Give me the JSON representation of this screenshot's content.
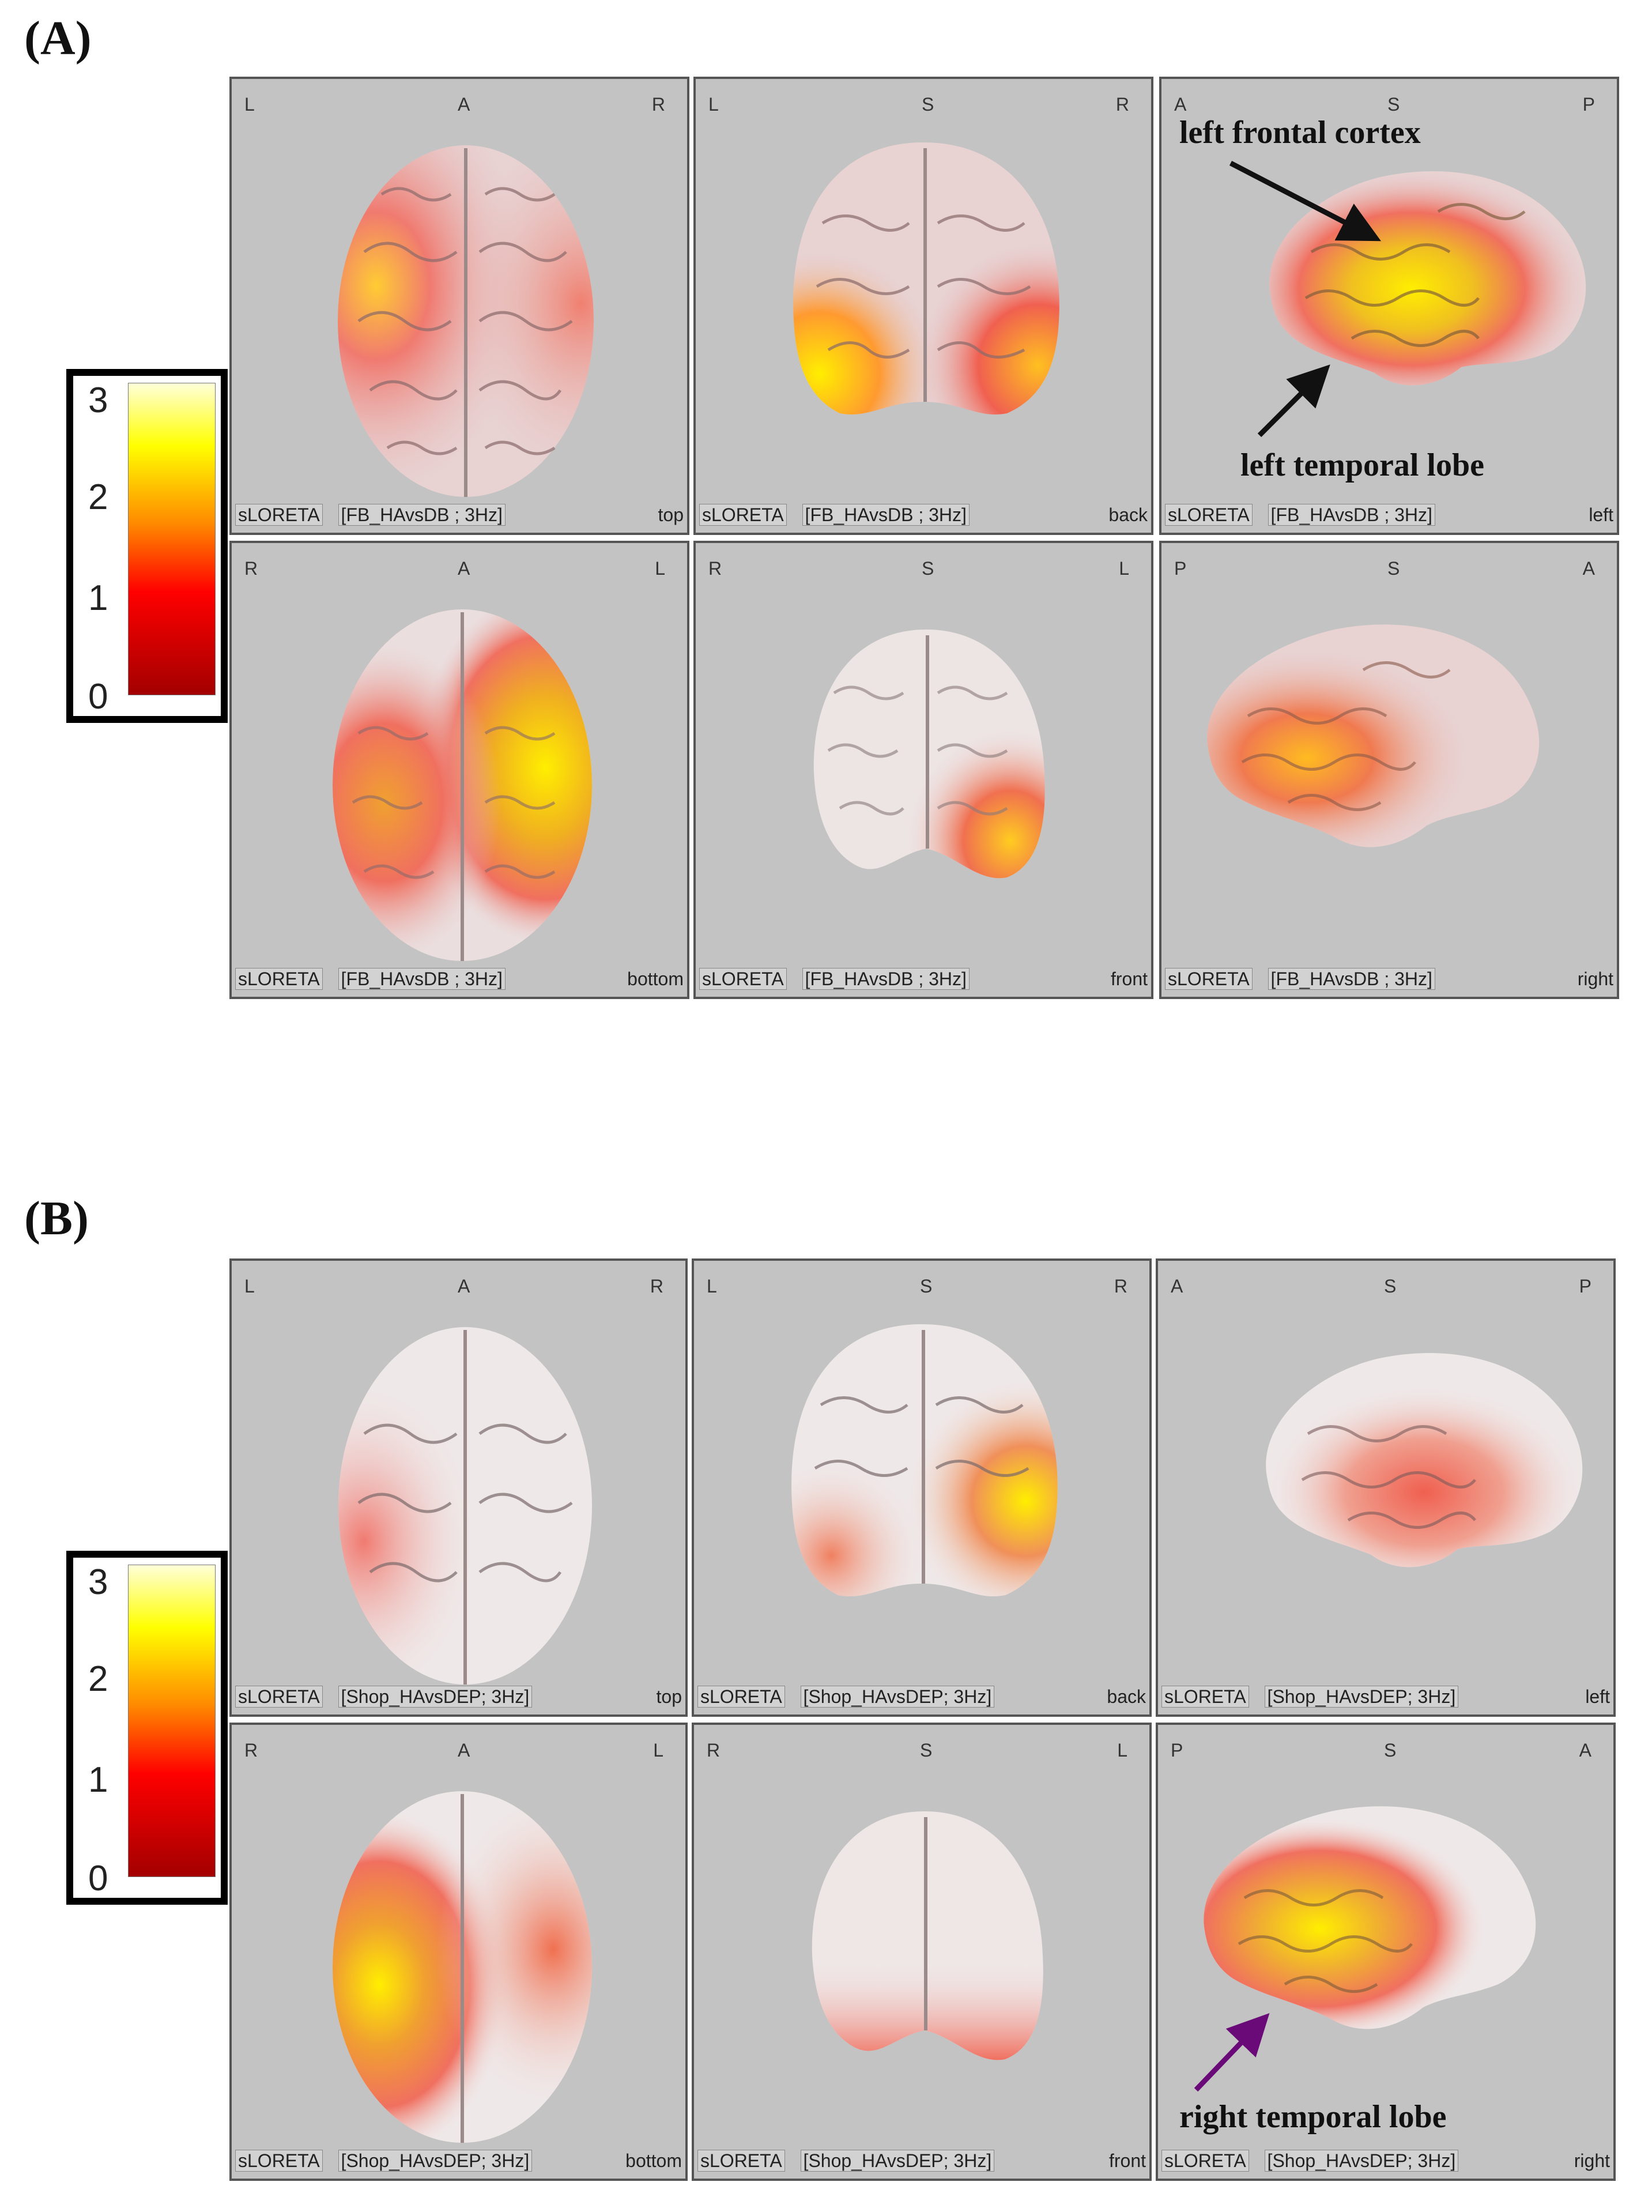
{
  "sections": [
    {
      "label": "(A)",
      "colorbar_ticks": [
        "3",
        "2",
        "1",
        "0"
      ],
      "panels": [
        {
          "tl": "L",
          "tc": "A",
          "tr": "R",
          "method": "sLORETA",
          "condition": "[FB_HAvsDB ; 3Hz]",
          "view": "top"
        },
        {
          "tl": "L",
          "tc": "S",
          "tr": "R",
          "method": "sLORETA",
          "condition": "[FB_HAvsDB ; 3Hz]",
          "view": "back"
        },
        {
          "tl": "A",
          "tc": "S",
          "tr": "P",
          "method": "sLORETA",
          "condition": "[FB_HAvsDB ; 3Hz]",
          "view": "left"
        },
        {
          "tl": "R",
          "tc": "A",
          "tr": "L",
          "method": "sLORETA",
          "condition": "[FB_HAvsDB ; 3Hz]",
          "view": "bottom"
        },
        {
          "tl": "R",
          "tc": "S",
          "tr": "L",
          "method": "sLORETA",
          "condition": "[FB_HAvsDB ; 3Hz]",
          "view": "front"
        },
        {
          "tl": "P",
          "tc": "S",
          "tr": "A",
          "method": "sLORETA",
          "condition": "[FB_HAvsDB ; 3Hz]",
          "view": "right"
        }
      ],
      "annotations": [
        "left frontal cortex",
        "left temporal lobe"
      ]
    },
    {
      "label": "(B)",
      "colorbar_ticks": [
        "3",
        "2",
        "1",
        "0"
      ],
      "panels": [
        {
          "tl": "L",
          "tc": "A",
          "tr": "R",
          "method": "sLORETA",
          "condition": "[Shop_HAvsDEP; 3Hz]",
          "view": "top"
        },
        {
          "tl": "L",
          "tc": "S",
          "tr": "R",
          "method": "sLORETA",
          "condition": "[Shop_HAvsDEP; 3Hz]",
          "view": "back"
        },
        {
          "tl": "A",
          "tc": "S",
          "tr": "P",
          "method": "sLORETA",
          "condition": "[Shop_HAvsDEP; 3Hz]",
          "view": "left"
        },
        {
          "tl": "R",
          "tc": "A",
          "tr": "L",
          "method": "sLORETA",
          "condition": "[Shop_HAvsDEP; 3Hz]",
          "view": "bottom"
        },
        {
          "tl": "R",
          "tc": "S",
          "tr": "L",
          "method": "sLORETA",
          "condition": "[Shop_HAvsDEP; 3Hz]",
          "view": "front"
        },
        {
          "tl": "P",
          "tc": "S",
          "tr": "A",
          "method": "sLORETA",
          "condition": "[Shop_HAvsDEP; 3Hz]",
          "view": "right"
        }
      ],
      "annotations": [
        "right temporal lobe"
      ]
    }
  ],
  "colors": {
    "panel_bg": "#c3c3c3",
    "brain_base": "#e8d4d4",
    "activation_low": "#e84040",
    "activation_mid": "#ff8a1a",
    "activation_high": "#ffee00",
    "arrow_black": "#111111",
    "arrow_purple": "#6a0a78"
  }
}
